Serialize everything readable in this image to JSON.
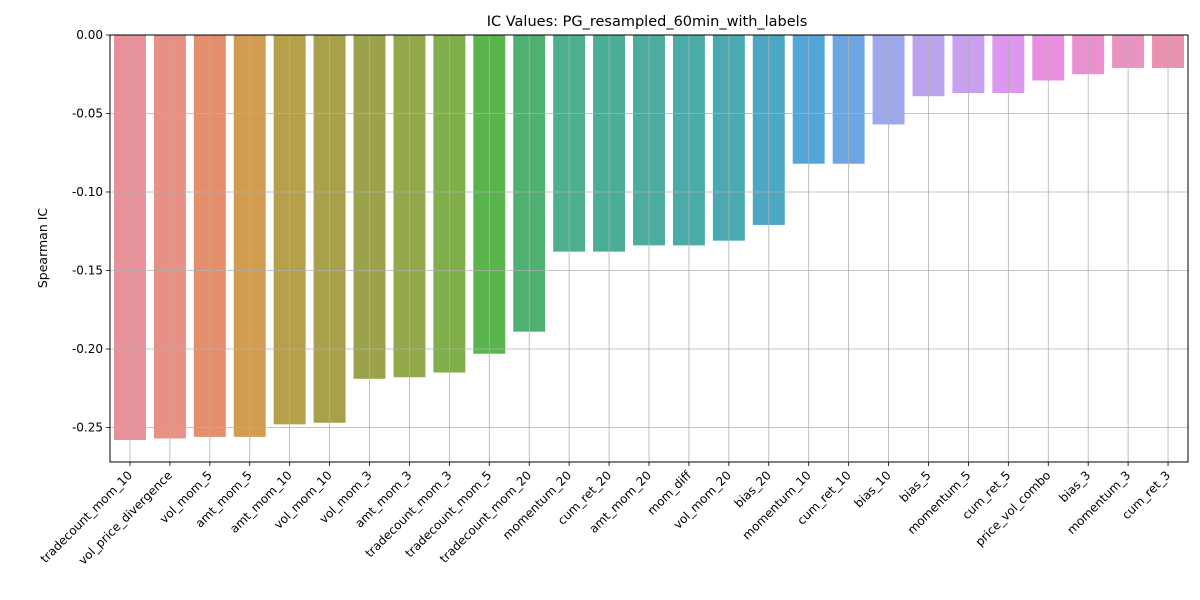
{
  "chart_data": {
    "type": "bar",
    "title": "IC Values: PG_resampled_60min_with_labels",
    "xlabel": "",
    "ylabel": "Spearman IC",
    "ylim": [
      -0.272,
      0.0
    ],
    "yticks": [
      "0.00",
      "-0.05",
      "-0.10",
      "-0.15",
      "-0.20",
      "-0.25"
    ],
    "ytick_values": [
      0.0,
      -0.05,
      -0.1,
      -0.15,
      -0.2,
      -0.25
    ],
    "grid": true,
    "categories": [
      "tradecount_mom_10",
      "vol_price_divergence",
      "vol_mom_5",
      "amt_mom_5",
      "amt_mom_10",
      "vol_mom_10",
      "vol_mom_3",
      "amt_mom_3",
      "tradecount_mom_3",
      "tradecount_mom_5",
      "tradecount_mom_20",
      "momentum_20",
      "cum_ret_20",
      "amt_mom_20",
      "mom_diff",
      "vol_mom_20",
      "bias_20",
      "momentum_10",
      "cum_ret_10",
      "bias_10",
      "bias_5",
      "momentum_5",
      "cum_ret_5",
      "price_vol_combo",
      "bias_3",
      "momentum_3",
      "cum_ret_3"
    ],
    "values": [
      -0.258,
      -0.257,
      -0.256,
      -0.256,
      -0.248,
      -0.247,
      -0.219,
      -0.218,
      -0.215,
      -0.203,
      -0.189,
      -0.138,
      -0.138,
      -0.134,
      -0.134,
      -0.131,
      -0.121,
      -0.082,
      -0.082,
      -0.057,
      -0.039,
      -0.037,
      -0.037,
      -0.029,
      -0.025,
      -0.021,
      -0.021
    ],
    "colors": [
      "#e8919b",
      "#e88f86",
      "#e58e6c",
      "#d29d51",
      "#b7a04a",
      "#a8a04b",
      "#9ca24b",
      "#93a74b",
      "#7fae4a",
      "#58b44b",
      "#4eb071",
      "#4cb08d",
      "#4aae96",
      "#4aad9e",
      "#4aaca7",
      "#4aaab2",
      "#4ba7c2",
      "#52a6d8",
      "#6ca6e2",
      "#9da8ec",
      "#bca3ee",
      "#c9a0f0",
      "#dd97ee",
      "#ea8fe0",
      "#ea90cf",
      "#e994c0",
      "#e991b0"
    ]
  }
}
